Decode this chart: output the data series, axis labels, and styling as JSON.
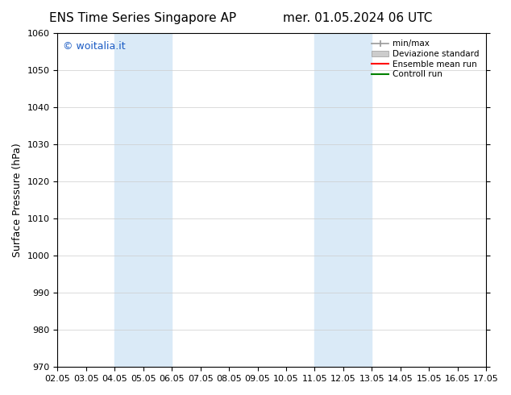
{
  "title_left": "ENS Time Series Singapore AP",
  "title_right": "mer. 01.05.2024 06 UTC",
  "ylabel": "Surface Pressure (hPa)",
  "ylim": [
    970,
    1060
  ],
  "yticks": [
    970,
    980,
    990,
    1000,
    1010,
    1020,
    1030,
    1040,
    1050,
    1060
  ],
  "xlim": [
    0,
    15
  ],
  "xtick_positions": [
    0,
    1,
    2,
    3,
    4,
    5,
    6,
    7,
    8,
    9,
    10,
    11,
    12,
    13,
    14,
    15
  ],
  "xtick_labels": [
    "02.05",
    "03.05",
    "04.05",
    "05.05",
    "06.05",
    "07.05",
    "08.05",
    "09.05",
    "10.05",
    "11.05",
    "12.05",
    "13.05",
    "14.05",
    "15.05",
    "16.05",
    "17.05"
  ],
  "shaded_regions": [
    {
      "xmin": 2,
      "xmax": 4,
      "color": "#daeaf7"
    },
    {
      "xmin": 9,
      "xmax": 11,
      "color": "#daeaf7"
    }
  ],
  "watermark_text": "© woitalia.it",
  "watermark_color": "#1a5bc4",
  "legend_entries": [
    {
      "label": "min/max",
      "color": "#999999",
      "lw": 1.2,
      "ls": "-"
    },
    {
      "label": "Deviazione standard",
      "color": "#cccccc",
      "lw": 7,
      "ls": "-"
    },
    {
      "label": "Ensemble mean run",
      "color": "#ff0000",
      "lw": 1.5,
      "ls": "-"
    },
    {
      "label": "Controll run",
      "color": "#008000",
      "lw": 1.5,
      "ls": "-"
    }
  ],
  "bg_color": "#ffffff",
  "plot_bg_color": "#ffffff",
  "title_fontsize": 11,
  "tick_fontsize": 8,
  "ylabel_fontsize": 9,
  "watermark_fontsize": 9
}
